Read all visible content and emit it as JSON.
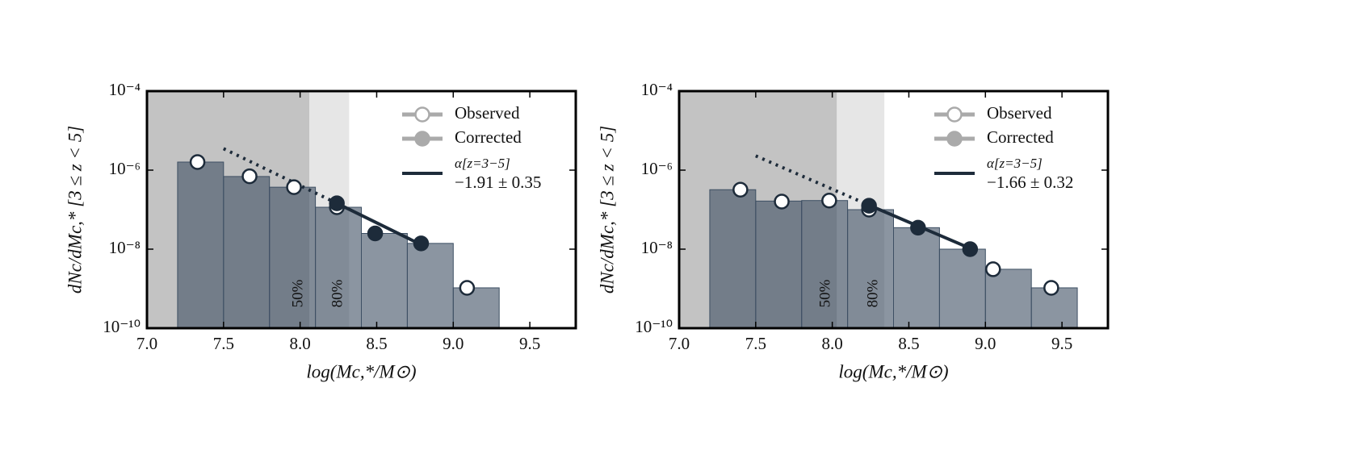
{
  "chart_data": [
    {
      "type": "histogram",
      "xlabel": "log(Mc,*/M⊙)",
      "ylabel": "dNc/dMc,* [3 ≤ z < 5]",
      "xlim": [
        7.0,
        9.8
      ],
      "ylim": [
        1e-10,
        0.0001
      ],
      "log_y": true,
      "xticks": [
        {
          "value": 7.0,
          "label": "7.0"
        },
        7.5,
        {
          "value": 8.0,
          "label": "8.0"
        },
        8.5,
        {
          "value": 9.0,
          "label": "9.0"
        },
        9.5
      ],
      "yticks": [
        {
          "value": 1e-10,
          "label": "10⁻¹⁰"
        },
        {
          "value": 1e-08,
          "label": "10⁻⁸"
        },
        {
          "value": 1e-06,
          "label": "10⁻⁶"
        },
        {
          "value": 0.0001,
          "label": "10⁻⁴"
        }
      ],
      "bins": [
        7.2,
        7.5,
        7.8,
        8.1,
        8.4,
        8.7,
        9.0,
        9.3
      ],
      "counts": [
        1.6e-06,
        6.9e-07,
        3.7e-07,
        1.15e-07,
        2.5e-08,
        1.4e-08,
        1.05e-09
      ],
      "bar_color": "#3d4f63",
      "completeness": [
        {
          "label": "50%",
          "range": [
            7.0,
            8.06
          ],
          "color": "#c3c3c3"
        },
        {
          "label": "80%",
          "range": [
            8.06,
            8.32
          ],
          "color": "#e6e6e6"
        }
      ],
      "series": [
        {
          "name": "Observed",
          "color": "#1d2b3a",
          "filled": false,
          "x": [
            7.33,
            7.67,
            7.96,
            8.24,
            9.09
          ],
          "values": [
            1.6e-06,
            7e-07,
            3.7e-07,
            1.15e-07,
            1.05e-09
          ]
        },
        {
          "name": "Corrected",
          "color": "#1d2b3a",
          "filled": true,
          "x": [
            8.24,
            8.49,
            8.79
          ],
          "values": [
            1.45e-07,
            2.5e-08,
            1.4e-08
          ]
        }
      ],
      "fit": {
        "name": "α[z=3−5]",
        "label": "−1.91 ± 0.35",
        "color": "#1d2b3a",
        "x": [
          8.24,
          8.79
        ],
        "values": [
          1.45e-07,
          1.3e-08
        ],
        "extrapolation": {
          "x": [
            7.5,
            8.24
          ],
          "values": [
            3.5e-06,
            1.45e-07
          ]
        }
      },
      "legend": "upper right"
    },
    {
      "type": "histogram",
      "xlabel": "log(Mc,*/M⊙)",
      "ylabel": "dNc/dMc,* [3 ≤ z < 5]",
      "xlim": [
        7.0,
        9.8
      ],
      "ylim": [
        1e-10,
        0.0001
      ],
      "log_y": true,
      "xticks": [
        {
          "value": 7.0,
          "label": "7.0"
        },
        7.5,
        {
          "value": 8.0,
          "label": "8.0"
        },
        8.5,
        {
          "value": 9.0,
          "label": "9.0"
        },
        9.5
      ],
      "yticks": [
        {
          "value": 1e-10,
          "label": "10⁻¹⁰"
        },
        {
          "value": 1e-08,
          "label": "10⁻⁸"
        },
        {
          "value": 1e-06,
          "label": "10⁻⁶"
        },
        {
          "value": 0.0001,
          "label": "10⁻⁴"
        }
      ],
      "bins": [
        7.2,
        7.5,
        7.8,
        8.1,
        8.4,
        8.7,
        9.0,
        9.3,
        9.6
      ],
      "counts": [
        3.2e-07,
        1.65e-07,
        1.7e-07,
        1e-07,
        3.5e-08,
        1e-08,
        3.1e-09,
        1.05e-09
      ],
      "bar_color": "#3d4f63",
      "completeness": [
        {
          "label": "50%",
          "range": [
            7.0,
            8.03
          ],
          "color": "#c3c3c3"
        },
        {
          "label": "80%",
          "range": [
            8.03,
            8.34
          ],
          "color": "#e6e6e6"
        }
      ],
      "series": [
        {
          "name": "Observed",
          "color": "#1d2b3a",
          "filled": false,
          "x": [
            7.4,
            7.67,
            7.98,
            8.24,
            9.05,
            9.43
          ],
          "values": [
            3.2e-07,
            1.6e-07,
            1.7e-07,
            1e-07,
            3.1e-09,
            1.05e-09
          ]
        },
        {
          "name": "Corrected",
          "color": "#1d2b3a",
          "filled": true,
          "x": [
            8.24,
            8.56,
            8.9
          ],
          "values": [
            1.26e-07,
            3.5e-08,
            1e-08
          ]
        }
      ],
      "fit": {
        "name": "α[z=3−5]",
        "label": "−1.66 ± 0.32",
        "color": "#1d2b3a",
        "x": [
          8.24,
          8.9
        ],
        "values": [
          1.3e-07,
          1.05e-08
        ],
        "extrapolation": {
          "x": [
            7.5,
            8.24
          ],
          "values": [
            2.3e-06,
            1.3e-07
          ]
        }
      },
      "legend": "upper right"
    }
  ]
}
